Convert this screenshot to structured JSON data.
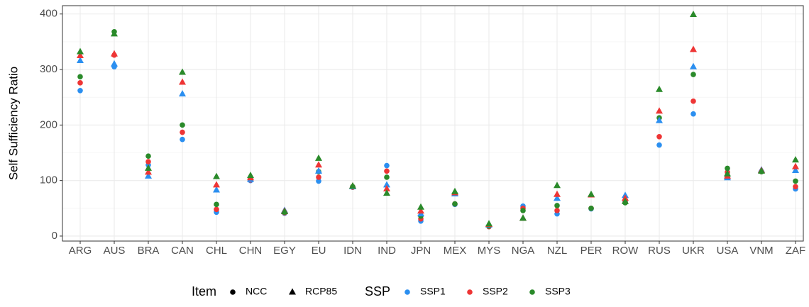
{
  "chart_data": {
    "type": "scatter",
    "y_label": "Self Sufficiency Ratio",
    "categories": [
      "ARG",
      "AUS",
      "BRA",
      "CAN",
      "CHL",
      "CHN",
      "EGY",
      "EU",
      "IDN",
      "IND",
      "JPN",
      "MEX",
      "MYS",
      "NGA",
      "NZL",
      "PER",
      "ROW",
      "RUS",
      "UKR",
      "USA",
      "VNM",
      "ZAF"
    ],
    "ylim": [
      -9,
      415
    ],
    "yticks": [
      0,
      100,
      200,
      300,
      400
    ],
    "minor_yticks": [
      50,
      150,
      250,
      350
    ],
    "grid": true,
    "shape_legend": {
      "title": "Item",
      "entries": [
        {
          "name": "NCC",
          "shape": "circle"
        },
        {
          "name": "RCP85",
          "shape": "triangle"
        }
      ]
    },
    "color_legend": {
      "title": "SSP",
      "entries": [
        {
          "name": "SSP1",
          "color": "#2b8ff0"
        },
        {
          "name": "SSP2",
          "color": "#ee3535"
        },
        {
          "name": "SSP3",
          "color": "#2a8a2a"
        }
      ]
    },
    "series": [
      {
        "item": "NCC",
        "ssp": "SSP1",
        "values": [
          262,
          305,
          128,
          174,
          43,
          100,
          41,
          99,
          88,
          127,
          27,
          57,
          17,
          54,
          40,
          49,
          62,
          164,
          220,
          107,
          116,
          85
        ]
      },
      {
        "item": "NCC",
        "ssp": "SSP2",
        "values": [
          276,
          326,
          134,
          187,
          48,
          101,
          42,
          106,
          88,
          117,
          31,
          58,
          17,
          50,
          46,
          50,
          61,
          179,
          243,
          115,
          116,
          89
        ]
      },
      {
        "item": "NCC",
        "ssp": "SSP3",
        "values": [
          287,
          368,
          144,
          200,
          57,
          103,
          43,
          116,
          89,
          106,
          36,
          58,
          18,
          46,
          55,
          50,
          60,
          213,
          291,
          122,
          116,
          99
        ]
      },
      {
        "item": "RCP85",
        "ssp": "SSP1",
        "values": [
          316,
          310,
          108,
          256,
          83,
          102,
          46,
          117,
          89,
          92,
          40,
          76,
          20,
          32,
          68,
          74,
          73,
          208,
          305,
          105,
          119,
          118
        ]
      },
      {
        "item": "RCP85",
        "ssp": "SSP2",
        "values": [
          325,
          328,
          115,
          277,
          92,
          105,
          45,
          128,
          90,
          85,
          45,
          78,
          21,
          32,
          75,
          74,
          68,
          225,
          336,
          108,
          118,
          125
        ]
      },
      {
        "item": "RCP85",
        "ssp": "SSP3",
        "values": [
          332,
          364,
          122,
          295,
          107,
          109,
          44,
          140,
          90,
          77,
          52,
          80,
          22,
          32,
          91,
          75,
          62,
          264,
          399,
          112,
          117,
          137
        ]
      }
    ]
  }
}
